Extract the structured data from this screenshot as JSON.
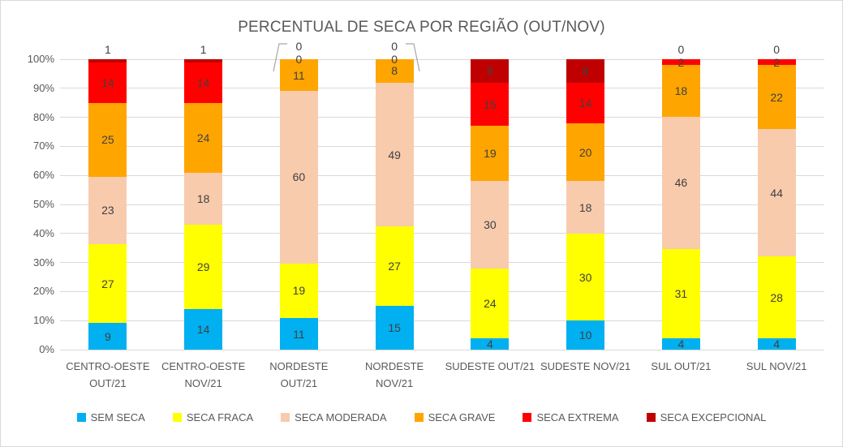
{
  "chart_data": {
    "type": "bar",
    "stacked": "100%",
    "title": "PERCENTUAL DE SECA POR REGIÃO (OUT/NOV)",
    "categories": [
      "CENTRO-OESTE OUT/21",
      "CENTRO-OESTE NOV/21",
      "NORDESTE OUT/21",
      "NORDESTE NOV/21",
      "SUDESTE OUT/21",
      "SUDESTE NOV/21",
      "SUL OUT/21",
      "SUL NOV/21"
    ],
    "series": [
      {
        "name": "SEM SECA",
        "color": "#00B0F0",
        "values": [
          9,
          14,
          11,
          15,
          4,
          10,
          4,
          4
        ]
      },
      {
        "name": "SECA FRACA",
        "color": "#FFFF00",
        "values": [
          27,
          29,
          19,
          27,
          24,
          30,
          31,
          28
        ]
      },
      {
        "name": "SECA MODERADA",
        "color": "#F8CBAD",
        "values": [
          23,
          18,
          60,
          49,
          30,
          18,
          46,
          44
        ]
      },
      {
        "name": "SECA GRAVE",
        "color": "#FFA500",
        "values": [
          25,
          24,
          11,
          8,
          19,
          20,
          18,
          22
        ]
      },
      {
        "name": "SECA EXTREMA",
        "color": "#FF0000",
        "values": [
          14,
          14,
          0,
          0,
          15,
          14,
          2,
          2
        ]
      },
      {
        "name": "SECA EXCEPCIONAL",
        "color": "#C00000",
        "values": [
          1,
          1,
          0,
          0,
          8,
          8,
          0,
          0
        ]
      }
    ],
    "y_ticks": [
      "0%",
      "10%",
      "20%",
      "30%",
      "40%",
      "50%",
      "60%",
      "70%",
      "80%",
      "90%",
      "100%"
    ],
    "ylim": [
      0,
      100
    ],
    "grid": true,
    "legend_position": "bottom",
    "axis_color": "#595959",
    "data_label_color": "#404040",
    "gridline_color": "#D9D9D9",
    "leader_lines": [
      {
        "category_index": 2,
        "side": "left"
      },
      {
        "category_index": 3,
        "side": "right"
      }
    ]
  }
}
